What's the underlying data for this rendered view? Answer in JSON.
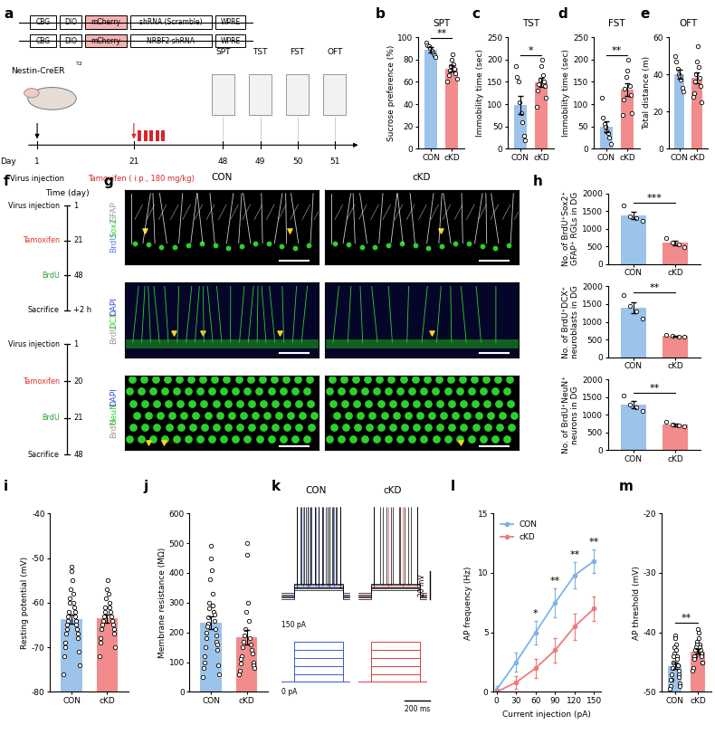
{
  "schematic_a": {
    "panel": "a",
    "constructs": [
      [
        "CBG",
        "DIO",
        "mCherry",
        "shRNA (Scramble)",
        "WPRE"
      ],
      [
        "CBG",
        "DIO",
        "mCherry",
        "NRBF2 shRNA",
        "WPRE"
      ]
    ],
    "mouse": {
      "text": "Nestin-CreER",
      "superscript": "T2"
    },
    "tests": [
      "SPT",
      "TST",
      "FST",
      "OFT"
    ],
    "timeline": {
      "label": "Day",
      "days": [
        "1",
        "21",
        "48",
        "49",
        "50",
        "51"
      ],
      "events": [
        {
          "text": "Virus injection",
          "color": "black"
        },
        {
          "text": "Tamoxifen ( i.p., 180 mg/kg)",
          "color": "#d62728"
        }
      ]
    }
  },
  "chart_data": [
    {
      "panel": "b",
      "type": "bar",
      "title": "SPT",
      "y_label": "Sucrose preference (%)",
      "categories": [
        "CON",
        "cKD"
      ],
      "values": [
        89,
        72
      ],
      "errors": [
        2.5,
        3
      ],
      "points": [
        [
          95,
          93,
          92,
          90,
          88,
          86,
          84,
          82
        ],
        [
          85,
          80,
          76,
          74,
          72,
          70,
          68,
          66,
          63,
          60
        ]
      ],
      "colors": [
        "#9cc3ea",
        "#f28b8b"
      ],
      "ylim": [
        0,
        100
      ],
      "yticks": [
        0,
        20,
        40,
        60,
        80,
        100
      ],
      "significance": "**"
    },
    {
      "panel": "c",
      "type": "bar",
      "title": "TST",
      "y_label": "Immobility time (sec)",
      "categories": [
        "CON",
        "cKD"
      ],
      "values": [
        98,
        148
      ],
      "errors": [
        20,
        10
      ],
      "points": [
        [
          185,
          160,
          150,
          105,
          80,
          60,
          30,
          20
        ],
        [
          200,
          185,
          165,
          155,
          150,
          145,
          140,
          130,
          115,
          95
        ]
      ],
      "colors": [
        "#9cc3ea",
        "#f28b8b"
      ],
      "ylim": [
        0,
        250
      ],
      "yticks": [
        0,
        50,
        100,
        150,
        200,
        250
      ],
      "significance": "*"
    },
    {
      "panel": "d",
      "type": "bar",
      "title": "FST",
      "y_label": "Immobility time (sec)",
      "categories": [
        "CON",
        "cKD"
      ],
      "values": [
        50,
        133
      ],
      "errors": [
        12,
        14
      ],
      "points": [
        [
          115,
          70,
          55,
          50,
          40,
          35,
          25,
          10
        ],
        [
          200,
          175,
          160,
          140,
          135,
          120,
          110,
          80,
          75
        ]
      ],
      "colors": [
        "#9cc3ea",
        "#f28b8b"
      ],
      "ylim": [
        0,
        250
      ],
      "yticks": [
        0,
        50,
        100,
        150,
        200,
        250
      ],
      "significance": "**"
    },
    {
      "panel": "e",
      "type": "bar",
      "title": "OFT",
      "y_label": "Total distance (m)",
      "categories": [
        "CON",
        "cKD"
      ],
      "values": [
        40,
        38
      ],
      "errors": [
        2.5,
        3
      ],
      "points": [
        [
          50,
          47,
          43,
          40,
          39,
          37,
          33,
          31
        ],
        [
          55,
          47,
          44,
          40,
          38,
          36,
          34,
          30,
          25,
          28
        ]
      ],
      "colors": [
        "#9cc3ea",
        "#f28b8b"
      ],
      "ylim": [
        0,
        60
      ],
      "yticks": [
        0,
        20,
        40,
        60
      ]
    },
    {
      "panel": "h",
      "type": "bar",
      "y_label": "No. of BrdU⁺Sox2⁺\nGFAP⁺ RGLs in DG",
      "categories": [
        "CON",
        "cKD"
      ],
      "values": [
        1380,
        600
      ],
      "errors": [
        110,
        60
      ],
      "points": [
        [
          1650,
          1350,
          1300,
          1230
        ],
        [
          750,
          620,
          560,
          480
        ]
      ],
      "colors": [
        "#9cc3ea",
        "#f28b8b"
      ],
      "ylim": [
        0,
        2000
      ],
      "yticks": [
        0,
        500,
        1000,
        1500,
        2000
      ],
      "significance": "***"
    },
    {
      "type": "bar",
      "y_label": "No. of BrdU⁺DCX⁺\nneuroblasts in DG",
      "categories": [
        "CON",
        "cKD"
      ],
      "values": [
        1400,
        600
      ],
      "errors": [
        150,
        15
      ],
      "points": [
        [
          1750,
          1450,
          1300,
          1100
        ],
        [
          620,
          610,
          590,
          580
        ]
      ],
      "colors": [
        "#9cc3ea",
        "#f28b8b"
      ],
      "ylim": [
        0,
        2000
      ],
      "yticks": [
        0,
        500,
        1000,
        1500,
        2000
      ],
      "significance": "**"
    },
    {
      "type": "bar",
      "y_label": "No. of BrdU⁺NeuN⁺\nneurons in DG",
      "categories": [
        "CON",
        "cKD"
      ],
      "values": [
        1280,
        720
      ],
      "errors": [
        100,
        35
      ],
      "points": [
        [
          1550,
          1300,
          1200,
          1100
        ],
        [
          800,
          720,
          690,
          670
        ]
      ],
      "colors": [
        "#9cc3ea",
        "#f28b8b"
      ],
      "ylim": [
        0,
        2000
      ],
      "yticks": [
        0,
        500,
        1000,
        1500,
        2000
      ],
      "significance": "**"
    },
    {
      "panel": "i",
      "type": "bar",
      "y_label": "Resting potential (mV)",
      "categories": [
        "CON",
        "cKD"
      ],
      "values": [
        -63.7,
        -63.5
      ],
      "errors": [
        1.1,
        0.9
      ],
      "points": [
        [
          -52,
          -53,
          -55,
          -57,
          -58,
          -59,
          -60,
          -60,
          -61,
          -62,
          -62,
          -63,
          -63,
          -64,
          -64,
          -65,
          -65,
          -66,
          -66,
          -67,
          -67,
          -68,
          -69,
          -70,
          -71,
          -72,
          -74,
          -76
        ],
        [
          -55,
          -57,
          -58,
          -59,
          -60,
          -61,
          -61,
          -62,
          -62,
          -63,
          -63,
          -64,
          -64,
          -65,
          -65,
          -66,
          -66,
          -67,
          -68,
          -69,
          -70,
          -72
        ]
      ],
      "colors": [
        "#9cc3ea",
        "#f28b8b"
      ],
      "ylim": [
        -80,
        -40
      ],
      "yticks": [
        -80,
        -70,
        -60,
        -50,
        -40
      ]
    },
    {
      "panel": "j",
      "type": "bar",
      "y_label": "Membrane resistance (MΩ)",
      "categories": [
        "CON",
        "cKD"
      ],
      "values": [
        232,
        183
      ],
      "errors": [
        22,
        24
      ],
      "points": [
        [
          490,
          450,
          410,
          380,
          330,
          300,
          290,
          280,
          270,
          260,
          250,
          240,
          230,
          220,
          210,
          200,
          190,
          180,
          170,
          160,
          150,
          140,
          120,
          100,
          90,
          80,
          60,
          50
        ],
        [
          500,
          460,
          300,
          270,
          240,
          210,
          190,
          180,
          170,
          160,
          150,
          140,
          130,
          120,
          110,
          100,
          95,
          90,
          80,
          70,
          60
        ]
      ],
      "colors": [
        "#9cc3ea",
        "#f28b8b"
      ],
      "ylim": [
        0,
        600
      ],
      "yticks": [
        0,
        100,
        200,
        300,
        400,
        500,
        600
      ]
    },
    {
      "panel": "l",
      "type": "line",
      "x_label": "Current injection (pA)",
      "y_label": "AP frequency (Hz)",
      "x": [
        0,
        30,
        60,
        90,
        120,
        150
      ],
      "xlim": [
        -5,
        160
      ],
      "xticks": [
        0,
        30,
        60,
        90,
        120,
        150
      ],
      "ylim": [
        0,
        15
      ],
      "yticks": [
        0,
        5,
        10,
        15
      ],
      "legend": "upper left",
      "marker": "o",
      "series": [
        {
          "name": "CON",
          "color": "#7fb2e8",
          "values": [
            0.2,
            2.5,
            5,
            7.5,
            9.8,
            11
          ],
          "errors": [
            0.3,
            0.8,
            1,
            1.2,
            1.1,
            1
          ]
        },
        {
          "name": "cKD",
          "color": "#ee7b7b",
          "values": [
            0,
            0.8,
            2,
            3.5,
            5.5,
            7
          ],
          "errors": [
            0,
            0.5,
            0.8,
            1,
            1.1,
            1
          ]
        }
      ],
      "significance": [
        null,
        null,
        "*",
        "**",
        "**",
        "**"
      ]
    },
    {
      "panel": "m",
      "type": "bar",
      "y_label": "AP threshold (mV)",
      "categories": [
        "CON",
        "cKD"
      ],
      "values": [
        -45.6,
        -43.2
      ],
      "errors": [
        0.5,
        0.4
      ],
      "points": [
        [
          -40.5,
          -41,
          -42,
          -42.5,
          -43,
          -43.5,
          -44,
          -44,
          -44.5,
          -45,
          -45,
          -45.5,
          -45.5,
          -46,
          -46,
          -46.5,
          -47,
          -47,
          -47.5,
          -48,
          -48,
          -48.5,
          -49,
          -49,
          -49.5
        ],
        [
          -39.5,
          -40,
          -41,
          -41.5,
          -42,
          -42,
          -42.5,
          -42.5,
          -43,
          -43,
          -43,
          -43.5,
          -43.5,
          -44,
          -44,
          -44,
          -44.5,
          -45,
          -45,
          -46,
          -46.5
        ]
      ],
      "colors": [
        "#9cc3ea",
        "#f28b8b"
      ],
      "ylim": [
        -50,
        -20
      ],
      "yticks": [
        -50,
        -40,
        -30,
        -20
      ],
      "significance": "**"
    }
  ],
  "timeline_f": {
    "panel": "f",
    "title": "Time (day)",
    "timelines": [
      {
        "times": [
          "1",
          "21",
          "48",
          "+2 h"
        ],
        "events": [
          {
            "text": "Virus injection",
            "color": "black"
          },
          {
            "text": "Tamoxifen",
            "color": "#e8312f"
          },
          {
            "text": "BrdU",
            "color": "#2ca02c"
          },
          {
            "text": "Sacrifice",
            "color": "black"
          }
        ]
      },
      {
        "times": [
          "1",
          "20",
          "21",
          "48"
        ],
        "events": [
          {
            "text": "Virus injection",
            "color": "black"
          },
          {
            "text": "Tamoxifen",
            "color": "#e8312f"
          },
          {
            "text": "BrdU",
            "color": "#2ca02c"
          },
          {
            "text": "Sacrifice",
            "color": "black"
          }
        ]
      }
    ]
  },
  "images_g": {
    "panel": "g",
    "columns": [
      "CON",
      "cKD"
    ],
    "rows": [
      [
        {
          "text": "BrdU",
          "color": "#5b7bff"
        },
        {
          "text": "Sox2",
          "color": "#2bd12b"
        },
        {
          "text": "GFAP",
          "color": "#9a9a9a"
        }
      ],
      [
        {
          "text": "BrdU",
          "color": "#9a9a9a"
        },
        {
          "text": "DCX",
          "color": "#2bd12b"
        },
        {
          "text": "DAPI",
          "color": "#3b4bd9"
        }
      ],
      [
        {
          "text": "BrdU",
          "color": "#9a9a9a"
        },
        {
          "text": "NeuN",
          "color": "#2bd12b"
        },
        {
          "text": "DAPI",
          "color": "#3b4bd9"
        }
      ]
    ]
  },
  "traces_k": {
    "panel": "k",
    "groups": [
      {
        "text": "CON",
        "color": "#3a5bd9"
      },
      {
        "text": "cKD",
        "color": "#e03c3c"
      }
    ],
    "stimulus_top": "150 pA",
    "stimulus_bottom": "0 pA",
    "scale_v": "20 mV",
    "scale_t": "200 ms"
  }
}
